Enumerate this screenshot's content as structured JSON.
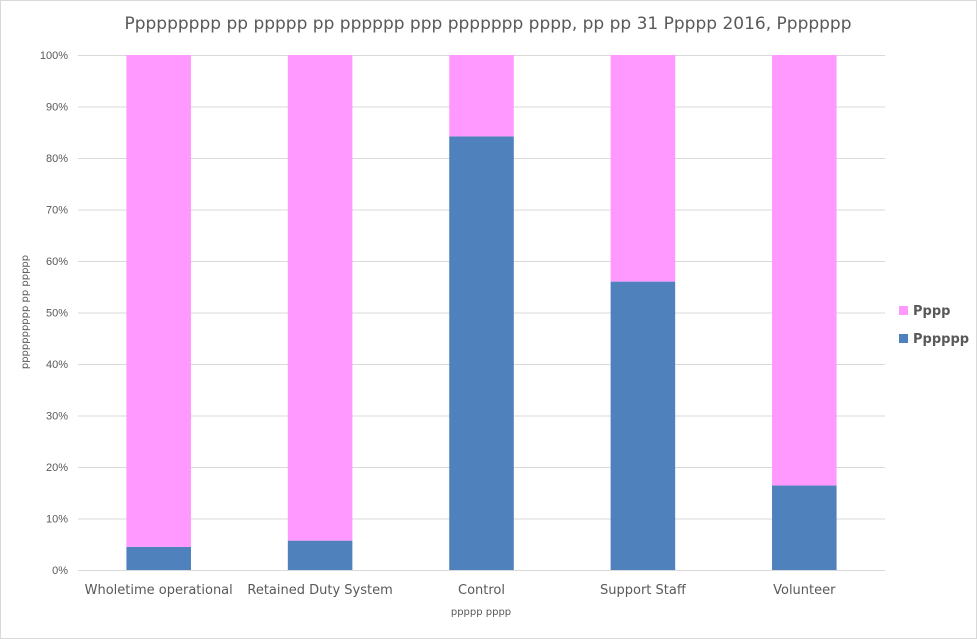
{
  "chart_data": {
    "type": "bar",
    "stacked": true,
    "title": "Ppppppppp pp ppppp pp pppppp ppp ppppppp pppp, pp pp 31 Ppppp 2016, Ppppppp",
    "xlabel": "ppppp pppp",
    "ylabel": "pppppppppp pp ppppp",
    "categories": [
      "Wholetime operational",
      "Retained Duty System",
      "Control",
      "Support Staff",
      "Volunteer"
    ],
    "series": [
      {
        "name": "Pppppp",
        "color": "#4f81bd",
        "values": [
          4.5,
          5.7,
          84.2,
          56.0,
          16.4
        ]
      },
      {
        "name": "Pppp",
        "color": "#ff99ff",
        "values": [
          95.5,
          94.3,
          15.8,
          44.0,
          83.6
        ]
      }
    ],
    "ylim": [
      0,
      100
    ],
    "yticks": [
      "0%",
      "10%",
      "20%",
      "30%",
      "40%",
      "50%",
      "60%",
      "70%",
      "80%",
      "90%",
      "100%"
    ],
    "grid": true,
    "legend_position": "right",
    "legend_order": [
      "Pppp",
      "Pppppp"
    ]
  }
}
